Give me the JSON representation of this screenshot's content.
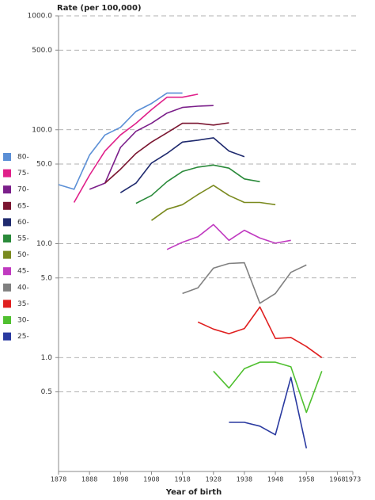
{
  "chart_data": {
    "type": "line",
    "y_axis_label": "Rate (per 100,000)",
    "x_axis_label": "Year of birth",
    "log_scale_y": true,
    "grid": true,
    "legend_position": "left",
    "x": [
      1878,
      1883,
      1888,
      1893,
      1898,
      1903,
      1908,
      1913,
      1918,
      1923,
      1928,
      1933,
      1938,
      1943,
      1948,
      1953,
      1958,
      1963
    ],
    "xlim": [
      1878,
      1973
    ],
    "xticks": [
      1878,
      1888,
      1898,
      1908,
      1918,
      1928,
      1938,
      1948,
      1958,
      1968,
      1973
    ],
    "ylim": [
      0.1,
      1000
    ],
    "yticks": [
      {
        "value": 1000,
        "label": "1000.0"
      },
      {
        "value": 500,
        "label": "500.0"
      },
      {
        "value": 100,
        "label": "100.0"
      },
      {
        "value": 50,
        "label": "50.0"
      },
      {
        "value": 10,
        "label": "10.0"
      },
      {
        "value": 5,
        "label": "5.0"
      },
      {
        "value": 1,
        "label": "1.0"
      },
      0.5
    ],
    "series": [
      {
        "name": "80-",
        "color": "#5b8fd6",
        "values": [
          33,
          30,
          60,
          90,
          105,
          145,
          170,
          210,
          210,
          null,
          null,
          null,
          null,
          null,
          null,
          null,
          null,
          null
        ]
      },
      {
        "name": "75-",
        "color": "#e0208a",
        "values": [
          null,
          23,
          40,
          65,
          90,
          114,
          150,
          193,
          193,
          205,
          null,
          null,
          null,
          null,
          null,
          null,
          null,
          null
        ]
      },
      {
        "name": "70-",
        "color": "#7b1f8a",
        "values": [
          null,
          null,
          30,
          34,
          70,
          97,
          114,
          140,
          157,
          161,
          163,
          null,
          null,
          null,
          null,
          null,
          null,
          null
        ]
      },
      {
        "name": "65-",
        "color": "#7a1530",
        "values": [
          null,
          null,
          null,
          34,
          45,
          62,
          78,
          94,
          114,
          114,
          110,
          115,
          null,
          null,
          null,
          null,
          null,
          null
        ]
      },
      {
        "name": "60-",
        "color": "#1f2a6e",
        "values": [
          null,
          null,
          null,
          null,
          28,
          34,
          51,
          62,
          78,
          81,
          85,
          65,
          58,
          null,
          null,
          null,
          null,
          null
        ]
      },
      {
        "name": "55-",
        "color": "#2a8a3a",
        "values": [
          null,
          null,
          null,
          null,
          null,
          22.6,
          26.5,
          35,
          43,
          47,
          49,
          46,
          37,
          35,
          null,
          null,
          null,
          null
        ]
      },
      {
        "name": "50-",
        "color": "#7a8a1f",
        "values": [
          null,
          null,
          null,
          null,
          null,
          null,
          16,
          20,
          22,
          27,
          32.5,
          26.5,
          23,
          23,
          22,
          null,
          null,
          null
        ]
      },
      {
        "name": "45-",
        "color": "#c03ac0",
        "values": [
          null,
          null,
          null,
          null,
          null,
          null,
          null,
          8.9,
          10.3,
          11.5,
          14.7,
          10.7,
          13.1,
          11.2,
          10.1,
          10.7,
          null,
          null
        ]
      },
      {
        "name": "40-",
        "color": "#808080",
        "values": [
          null,
          null,
          null,
          null,
          null,
          null,
          null,
          null,
          3.65,
          4.1,
          6.1,
          6.7,
          6.8,
          3.0,
          3.65,
          5.6,
          6.5,
          null
        ]
      },
      {
        "name": "35-",
        "color": "#e02020",
        "values": [
          null,
          null,
          null,
          null,
          null,
          null,
          null,
          null,
          null,
          2.05,
          1.78,
          1.62,
          1.8,
          2.78,
          1.47,
          1.5,
          1.25,
          1.0
        ]
      },
      {
        "name": "30-",
        "color": "#50c030",
        "values": [
          null,
          null,
          null,
          null,
          null,
          null,
          null,
          null,
          null,
          null,
          0.76,
          0.54,
          0.8,
          0.91,
          0.91,
          0.83,
          0.33,
          0.76
        ]
      },
      {
        "name": "25-",
        "color": "#2a3aa0",
        "values": [
          null,
          null,
          null,
          null,
          null,
          null,
          null,
          null,
          null,
          null,
          null,
          0.27,
          0.27,
          0.25,
          0.21,
          0.67,
          0.16,
          null
        ]
      }
    ]
  }
}
